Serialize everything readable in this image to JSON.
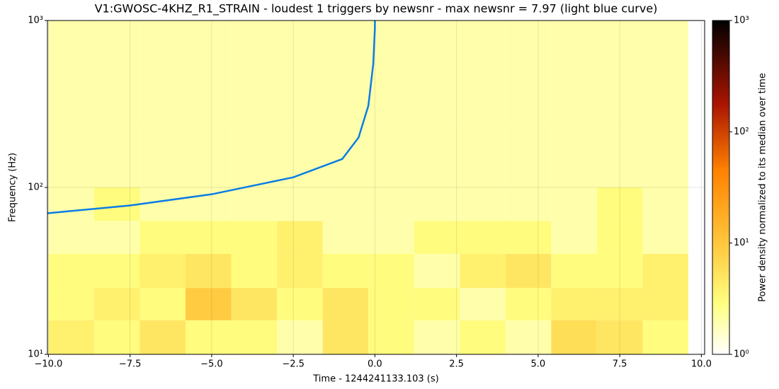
{
  "chart_data": {
    "type": "spectrogram",
    "title": "V1:GWOSC-4KHZ_R1_STRAIN - loudest 1 triggers by newsnr - max newsnr = 7.97 (light blue curve)",
    "xlabel": "Time - 1244241133.103 (s)",
    "ylabel": "Frequency (Hz)",
    "colorbar_label": "Power density normalized to its median over time",
    "xlim": [
      -10.03,
      10.1
    ],
    "xticks": [
      {
        "value": -10,
        "label": "−10.0"
      },
      {
        "value": -7.5,
        "label": "−7.5"
      },
      {
        "value": -5,
        "label": "−5.0"
      },
      {
        "value": -2.5,
        "label": "−2.5"
      },
      {
        "value": 0,
        "label": "0.0"
      },
      {
        "value": 2.5,
        "label": "2.5"
      },
      {
        "value": 5,
        "label": "5.0"
      },
      {
        "value": 7.5,
        "label": "7.5"
      },
      {
        "value": 10,
        "label": "10.0"
      }
    ],
    "ylim": [
      10,
      1000
    ],
    "yscale": "log",
    "yticks": [
      {
        "value": 10,
        "label": "10¹"
      },
      {
        "value": 100,
        "label": "10²"
      },
      {
        "value": 1000,
        "label": "10³"
      }
    ],
    "grid": true,
    "clim": [
      1,
      1000
    ],
    "cscale": "log",
    "cticks": [
      {
        "value": 1,
        "label": "10⁰"
      },
      {
        "value": 10,
        "label": "10¹"
      },
      {
        "value": 100,
        "label": "10²"
      },
      {
        "value": 1000,
        "label": "10³"
      }
    ],
    "heatmap": {
      "x_edges": [
        -10,
        -8.6,
        -7.2,
        -5.8,
        -4.4,
        -3,
        -1.6,
        -0.2,
        1.2,
        2.6,
        4,
        5.4,
        6.8,
        8.2,
        9.6
      ],
      "y_edges": [
        10,
        16,
        25,
        40,
        63,
        100,
        250,
        1000
      ],
      "values": [
        [
          4,
          3,
          5,
          3,
          3,
          2,
          5,
          3,
          2,
          3,
          2,
          6,
          5,
          3
        ],
        [
          3,
          4,
          3,
          9,
          5,
          3,
          5,
          3,
          3,
          2,
          3,
          4,
          4,
          4
        ],
        [
          3,
          3,
          4,
          5,
          3,
          4,
          3,
          3,
          2,
          4,
          5,
          3,
          3,
          4
        ],
        [
          2,
          2,
          3,
          3,
          3,
          4,
          2,
          2,
          3,
          3,
          3,
          2,
          3,
          2
        ],
        [
          2,
          3,
          2,
          2,
          2,
          2,
          2,
          2,
          2,
          2,
          2,
          2,
          3,
          2
        ],
        [
          2,
          2,
          2,
          2,
          2,
          2,
          2,
          2,
          2,
          2,
          2,
          2,
          2,
          2
        ],
        [
          2,
          2,
          2,
          2,
          2,
          2,
          2,
          2,
          2,
          2,
          2,
          2,
          2,
          2
        ]
      ]
    },
    "series": [
      {
        "color": "#0a7ce6",
        "x": [
          -10.03,
          -7.5,
          -5,
          -2.5,
          -1,
          -0.5,
          -0.2,
          -0.05,
          0,
          0
        ],
        "values": [
          70,
          78,
          91,
          115,
          148,
          199,
          309,
          551,
          900,
          1000
        ]
      }
    ]
  }
}
